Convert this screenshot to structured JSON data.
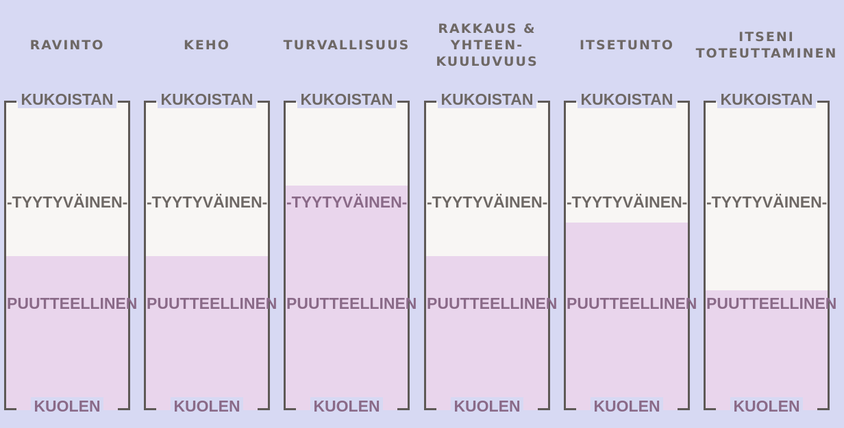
{
  "chart_data": {
    "type": "bar",
    "categories": [
      "RAVINTO",
      "KEHO",
      "TURVALLISUUS",
      "RAKKAUS &\nYHTEEN-\nKUULUVUUS",
      "ITSETUNTO",
      "ITSENI\nTOTEUTTAMINEN"
    ],
    "values": [
      0.5,
      0.5,
      0.73,
      0.5,
      0.61,
      0.39
    ],
    "ylim": [
      0,
      1
    ],
    "level_labels": {
      "top": "KUKOISTAN",
      "upper_mid": "-TYYTYVÄINEN-",
      "lower_mid": "PUUTTEELLINEN",
      "bottom": "KUOLEN"
    },
    "colors": {
      "background": "#d7d9f3",
      "tube": "#f8f6f4",
      "fill": "#e9d5ec",
      "outline": "#5e5956",
      "text": "#6e6865",
      "text_on_fill": "#8a6a88"
    }
  }
}
